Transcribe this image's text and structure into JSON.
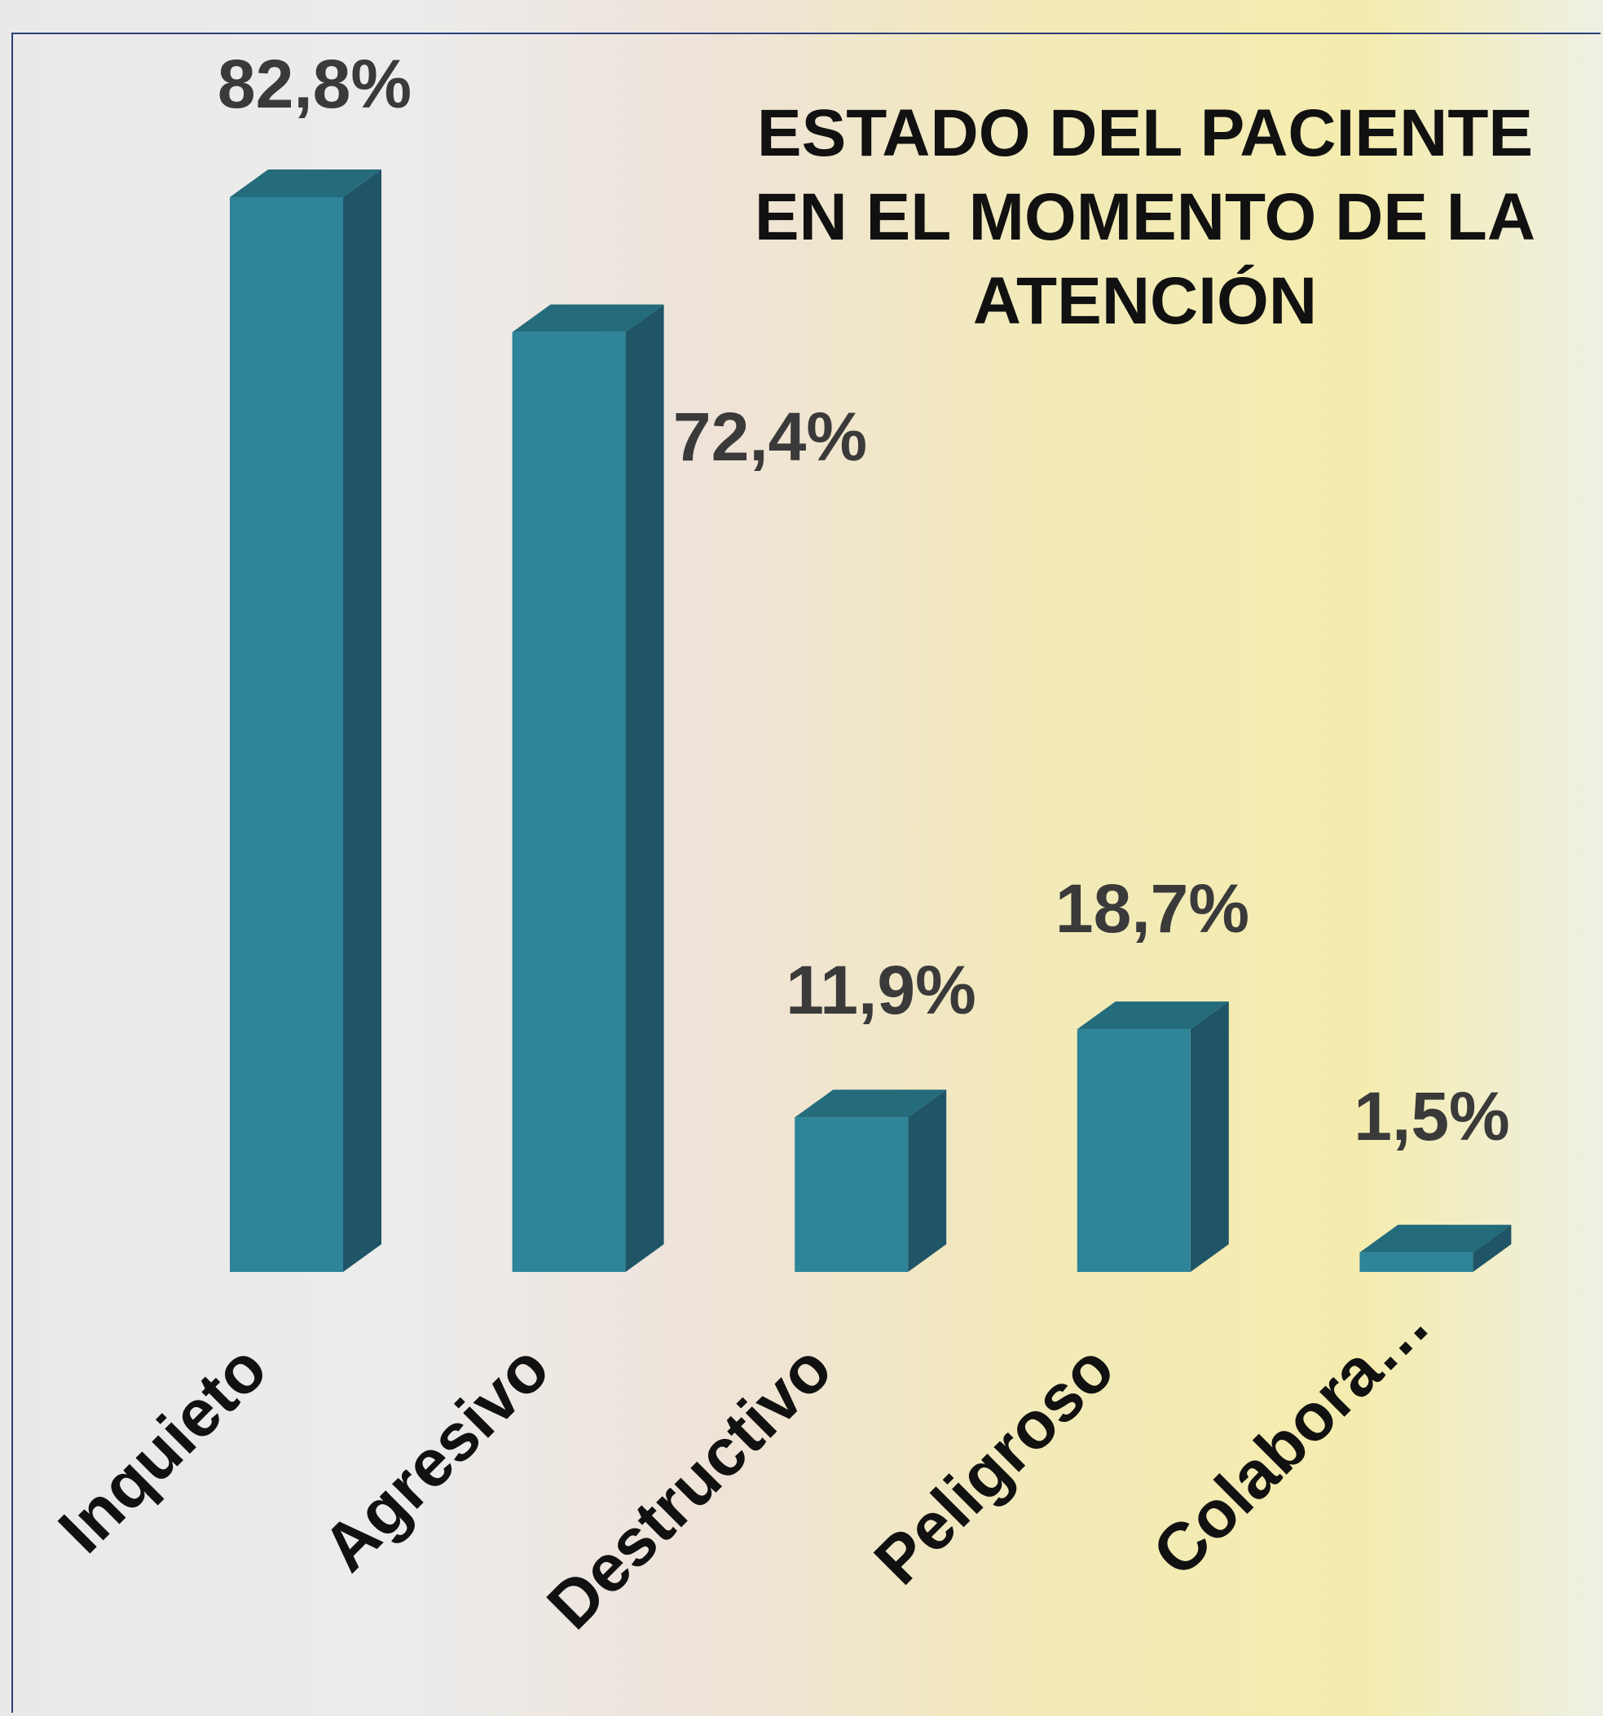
{
  "chart_data": {
    "type": "bar3d",
    "title": "ESTADO DEL PACIENTE EN EL MOMENTO DE LA ATENCIÓN",
    "categories": [
      "Inquieto",
      "Agresivo",
      "Destructivo",
      "Peligroso",
      "Colabora…"
    ],
    "values": [
      82.8,
      72.4,
      11.9,
      18.7,
      1.5
    ],
    "value_labels": [
      "82,8%",
      "72,4%",
      "11,9%",
      "18,7%",
      "1,5%"
    ],
    "color": "#2e8499"
  }
}
